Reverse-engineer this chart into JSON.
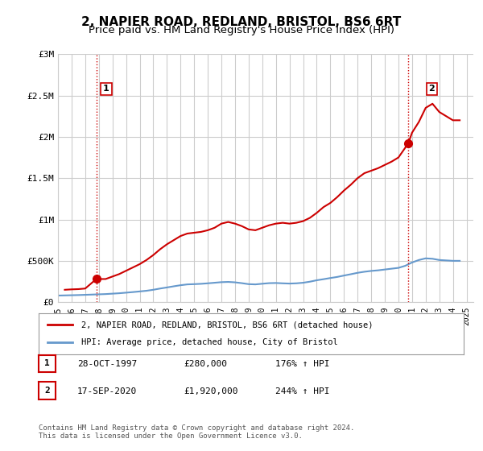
{
  "title": "2, NAPIER ROAD, REDLAND, BRISTOL, BS6 6RT",
  "subtitle": "Price paid vs. HM Land Registry's House Price Index (HPI)",
  "title_fontsize": 11,
  "subtitle_fontsize": 9.5,
  "background_color": "#ffffff",
  "plot_bg_color": "#ffffff",
  "grid_color": "#cccccc",
  "sale1_date": 1997.82,
  "sale1_price": 280000,
  "sale1_label": "1",
  "sale2_date": 2020.72,
  "sale2_price": 1920000,
  "sale2_label": "2",
  "house_line_color": "#cc0000",
  "hpi_line_color": "#6699cc",
  "dashed_line_color": "#cc0000",
  "ylim": [
    0,
    3000000
  ],
  "xlim": [
    1995,
    2025.5
  ],
  "ylabel_ticks": [
    0,
    500000,
    1000000,
    1500000,
    2000000,
    2500000,
    3000000
  ],
  "ylabel_labels": [
    "£0",
    "£500K",
    "£1M",
    "£1.5M",
    "£2M",
    "£2.5M",
    "£3M"
  ],
  "xtick_years": [
    1995,
    1996,
    1997,
    1998,
    1999,
    2000,
    2001,
    2002,
    2003,
    2004,
    2005,
    2006,
    2007,
    2008,
    2009,
    2010,
    2011,
    2012,
    2013,
    2014,
    2015,
    2016,
    2017,
    2018,
    2019,
    2020,
    2021,
    2022,
    2023,
    2024,
    2025
  ],
  "legend_house": "2, NAPIER ROAD, REDLAND, BRISTOL, BS6 6RT (detached house)",
  "legend_hpi": "HPI: Average price, detached house, City of Bristol",
  "table_rows": [
    {
      "num": "1",
      "date": "28-OCT-1997",
      "price": "£280,000",
      "hpi": "176% ↑ HPI"
    },
    {
      "num": "2",
      "date": "17-SEP-2020",
      "price": "£1,920,000",
      "hpi": "244% ↑ HPI"
    }
  ],
  "footnote": "Contains HM Land Registry data © Crown copyright and database right 2024.\nThis data is licensed under the Open Government Licence v3.0.",
  "house_price_data": {
    "years": [
      1995.5,
      1996.0,
      1996.5,
      1997.0,
      1997.82,
      1998.5,
      1999.0,
      1999.5,
      2000.0,
      2000.5,
      2001.0,
      2001.5,
      2002.0,
      2002.5,
      2003.0,
      2003.5,
      2004.0,
      2004.5,
      2005.0,
      2005.5,
      2006.0,
      2006.5,
      2007.0,
      2007.5,
      2008.0,
      2008.5,
      2009.0,
      2009.5,
      2010.0,
      2010.5,
      2011.0,
      2011.5,
      2012.0,
      2012.5,
      2013.0,
      2013.5,
      2014.0,
      2014.5,
      2015.0,
      2015.5,
      2016.0,
      2016.5,
      2017.0,
      2017.5,
      2018.0,
      2018.5,
      2019.0,
      2019.5,
      2020.0,
      2020.72,
      2021.0,
      2021.5,
      2022.0,
      2022.5,
      2023.0,
      2023.5,
      2024.0,
      2024.5
    ],
    "prices": [
      150000,
      155000,
      158000,
      165000,
      280000,
      280000,
      310000,
      340000,
      380000,
      420000,
      460000,
      510000,
      570000,
      640000,
      700000,
      750000,
      800000,
      830000,
      840000,
      850000,
      870000,
      900000,
      950000,
      970000,
      950000,
      920000,
      880000,
      870000,
      900000,
      930000,
      950000,
      960000,
      950000,
      960000,
      980000,
      1020000,
      1080000,
      1150000,
      1200000,
      1270000,
      1350000,
      1420000,
      1500000,
      1560000,
      1590000,
      1620000,
      1660000,
      1700000,
      1750000,
      1920000,
      2050000,
      2180000,
      2350000,
      2400000,
      2300000,
      2250000,
      2200000,
      2200000
    ]
  },
  "hpi_data": {
    "years": [
      1995.0,
      1995.5,
      1996.0,
      1996.5,
      1997.0,
      1997.5,
      1998.0,
      1998.5,
      1999.0,
      1999.5,
      2000.0,
      2000.5,
      2001.0,
      2001.5,
      2002.0,
      2002.5,
      2003.0,
      2003.5,
      2004.0,
      2004.5,
      2005.0,
      2005.5,
      2006.0,
      2006.5,
      2007.0,
      2007.5,
      2008.0,
      2008.5,
      2009.0,
      2009.5,
      2010.0,
      2010.5,
      2011.0,
      2011.5,
      2012.0,
      2012.5,
      2013.0,
      2013.5,
      2014.0,
      2014.5,
      2015.0,
      2015.5,
      2016.0,
      2016.5,
      2017.0,
      2017.5,
      2018.0,
      2018.5,
      2019.0,
      2019.5,
      2020.0,
      2020.5,
      2021.0,
      2021.5,
      2022.0,
      2022.5,
      2023.0,
      2023.5,
      2024.0,
      2024.5
    ],
    "prices": [
      80000,
      82000,
      84000,
      86000,
      89000,
      92000,
      95000,
      98000,
      103000,
      108000,
      115000,
      122000,
      130000,
      138000,
      150000,
      165000,
      178000,
      192000,
      205000,
      215000,
      218000,
      222000,
      228000,
      235000,
      242000,
      245000,
      240000,
      230000,
      218000,
      215000,
      223000,
      230000,
      232000,
      228000,
      225000,
      228000,
      235000,
      248000,
      265000,
      278000,
      292000,
      305000,
      322000,
      338000,
      355000,
      368000,
      378000,
      385000,
      395000,
      405000,
      415000,
      440000,
      480000,
      510000,
      530000,
      525000,
      510000,
      505000,
      500000,
      500000
    ]
  }
}
